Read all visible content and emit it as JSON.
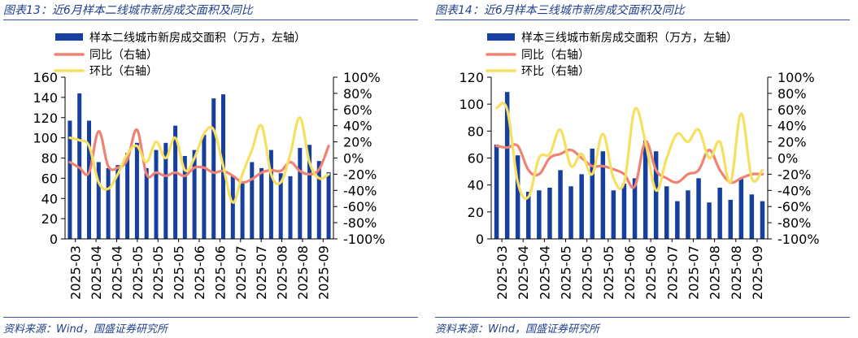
{
  "charts": [
    {
      "title": "图表13：近6月样本二线城市新房成交面积及同比",
      "source": "资料来源：Wind，国盛证券研究所",
      "chart_data": {
        "type": "bar+line",
        "legend": [
          "样本二线城市新房成交面积（万方，左轴）",
          "同比（右轴）",
          "环比（右轴）"
        ],
        "legend_position": "top-left",
        "left_axis": {
          "range": [
            0,
            160
          ],
          "ticks": [
            "0",
            "20",
            "40",
            "60",
            "80",
            "100",
            "120",
            "140",
            "160"
          ]
        },
        "right_axis": {
          "range": [
            -100,
            100
          ],
          "ticks": [
            "-100%",
            "-80%",
            "-60%",
            "-40%",
            "-20%",
            "0%",
            "20%",
            "40%",
            "60%",
            "80%",
            "100%"
          ]
        },
        "x_tick_labels": [
          "2025-03",
          "2025-04",
          "2025-04",
          "2025-05",
          "2025-05",
          "2025-05",
          "2025-06",
          "2025-06",
          "2025-07",
          "2025-07",
          "2025-08",
          "2025-08",
          "2025-09"
        ],
        "bars": [
          117,
          144,
          117,
          76,
          70,
          73,
          85,
          95,
          70,
          88,
          95,
          112,
          82,
          88,
          103,
          139,
          143,
          62,
          55,
          76,
          70,
          88,
          65,
          62,
          90,
          93,
          77,
          66
        ],
        "yoy": [
          -5,
          -12,
          -18,
          33,
          -10,
          -12,
          -2,
          35,
          -20,
          -18,
          -22,
          -18,
          -22,
          -12,
          -12,
          -18,
          -16,
          -22,
          -30,
          -26,
          -18,
          -15,
          -16,
          -5,
          -16,
          -20,
          -14,
          15
        ],
        "mom": [
          25,
          22,
          15,
          -30,
          -38,
          -20,
          5,
          15,
          -5,
          20,
          0,
          25,
          -15,
          0,
          30,
          35,
          -10,
          -55,
          -20,
          10,
          40,
          -20,
          -30,
          5,
          50,
          -5,
          -25,
          -20
        ]
      }
    },
    {
      "title": "图表14：近6月样本三线城市新房成交面积及同比",
      "source": "资料来源：Wind，国盛证券研究所",
      "chart_data": {
        "type": "bar+line",
        "legend": [
          "样本三线城市新房成交面积（万方，左轴）",
          "同比（右轴）",
          "环比（右轴）"
        ],
        "legend_position": "top-left",
        "left_axis": {
          "range": [
            0,
            120
          ],
          "ticks": [
            "0",
            "20",
            "40",
            "60",
            "80",
            "100",
            "120"
          ]
        },
        "right_axis": {
          "range": [
            -100,
            100
          ],
          "ticks": [
            "-100%",
            "-80%",
            "-60%",
            "-40%",
            "-20%",
            "0%",
            "20%",
            "40%",
            "60%",
            "80%",
            "100%"
          ]
        },
        "x_tick_labels": [
          "2025-03",
          "2025-04",
          "2025-04",
          "2025-05",
          "2025-05",
          "2025-05",
          "2025-06",
          "2025-06",
          "2025-07",
          "2025-07",
          "2025-08",
          "2025-08",
          "2025-09"
        ],
        "bars": [
          70,
          109,
          62,
          35,
          36,
          38,
          51,
          39,
          48,
          67,
          65,
          36,
          41,
          45,
          73,
          65,
          39,
          28,
          36,
          45,
          27,
          38,
          29,
          45,
          33,
          28
        ],
        "yoy": [
          15,
          13,
          15,
          -15,
          -20,
          0,
          5,
          10,
          0,
          -10,
          -10,
          -14,
          -20,
          -35,
          20,
          -15,
          -25,
          -30,
          -20,
          -15,
          10,
          -15,
          -30,
          -25,
          -20,
          -20
        ],
        "mom": [
          62,
          60,
          -30,
          -48,
          0,
          5,
          35,
          -10,
          5,
          -20,
          30,
          -25,
          -30,
          60,
          20,
          -40,
          0,
          30,
          20,
          35,
          0,
          20,
          -30,
          55,
          -25,
          -15
        ]
      }
    }
  ]
}
